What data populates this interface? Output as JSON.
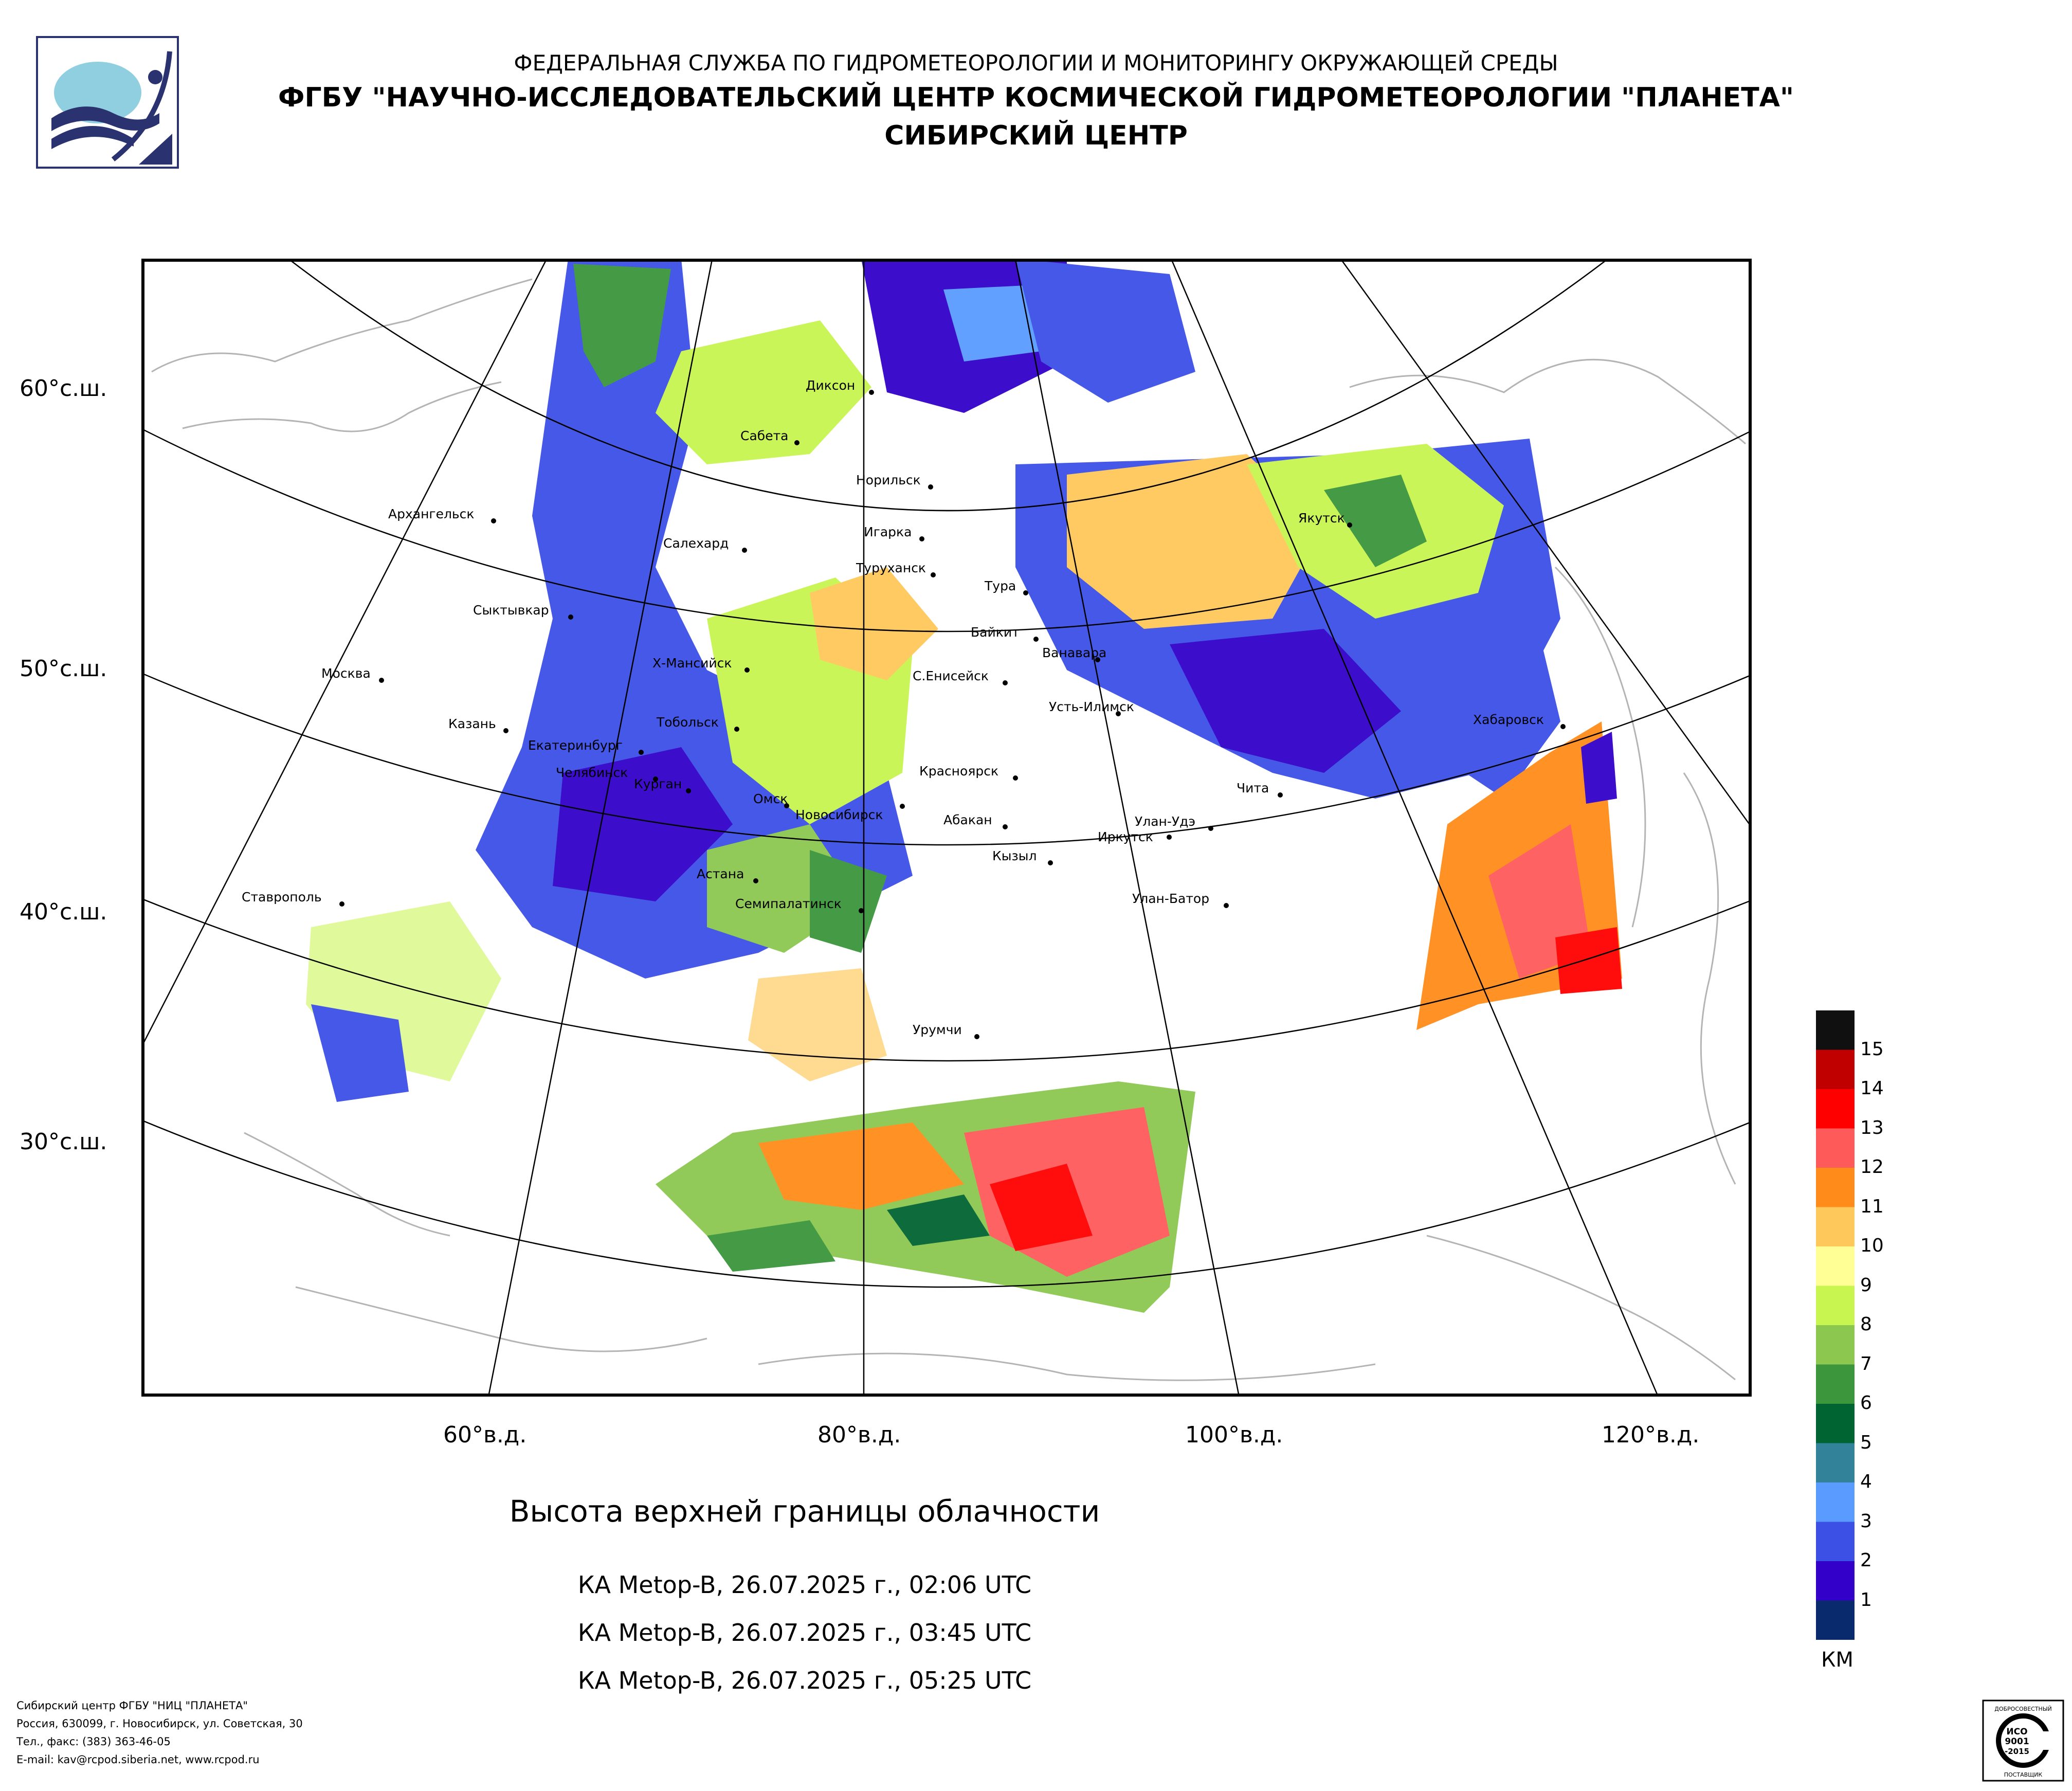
{
  "header": {
    "line1": "ФЕДЕРАЛЬНАЯ СЛУЖБА ПО ГИДРОМЕТЕОРОЛОГИИ И МОНИТОРИНГУ ОКРУЖАЮЩЕЙ СРЕДЫ",
    "line2": "ФГБУ \"НАУЧНО-ИССЛЕДОВАТЕЛЬСКИЙ ЦЕНТР КОСМИЧЕСКОЙ ГИДРОМЕТЕОРОЛОГИИ \"ПЛАНЕТА\"",
    "line3": "СИБИРСКИЙ ЦЕНТР"
  },
  "latitude_labels": [
    "60°с.ш.",
    "50°с.ш.",
    "40°с.ш.",
    "30°с.ш."
  ],
  "longitude_labels": [
    "60°в.д.",
    "80°в.д.",
    "100°в.д.",
    "120°в.д."
  ],
  "cities": [
    "Архангельск",
    "Сыктывкар",
    "Москва",
    "Казань",
    "Екатеринбург",
    "Челябинск",
    "Курган",
    "Тобольск",
    "Х-Мансийск",
    "Салехард",
    "Сабета",
    "Диксон",
    "Норильск",
    "Игарка",
    "Туруханск",
    "Тура",
    "Якутск",
    "Байкит",
    "Ванавара",
    "С.Енисейск",
    "Усть-Илимск",
    "Хабаровск",
    "Красноярск",
    "Омск",
    "Новосибирск",
    "Абакан",
    "Кызыл",
    "Иркутск",
    "Улан-Удэ",
    "Чита",
    "Астана",
    "Семипалатинск",
    "Улан-Батор",
    "Ставрополь",
    "Урумчи"
  ],
  "title": "Высота верхней границы облачности",
  "passes": [
    "КА Metop-B, 26.07.2025 г., 02:06 UTC",
    "КА Metop-B, 26.07.2025 г., 03:45 UTC",
    "КА Metop-B, 26.07.2025 г., 05:25 UTC"
  ],
  "legend": {
    "unit": "КМ",
    "levels": [
      "15",
      "14",
      "13",
      "12",
      "11",
      "10",
      "9",
      "8",
      "7",
      "6",
      "5",
      "4",
      "3",
      "2",
      "1"
    ],
    "colors": [
      "#101010",
      "#c00000",
      "#ff0000",
      "#ff5a5a",
      "#ff8c1a",
      "#ffc85a",
      "#ffff96",
      "#c8f550",
      "#8cc850",
      "#3c963c",
      "#006432",
      "#32829a",
      "#5a9bff",
      "#3c50e6",
      "#3200c8",
      "#0a2a6e"
    ]
  },
  "footer": [
    "Сибирский центр ФГБУ \"НИЦ \"ПЛАНЕТА\"",
    "Россия, 630099, г. Новосибирск, ул. Советская, 30",
    "Тел., факс: (383) 363-46-05",
    "E-mail: kav@rcpod.siberia.net, www.rcpod.ru"
  ],
  "cert": {
    "top_text": "ДОБРОСОВЕСТНЫЙ",
    "line1": "ИСО",
    "line2": "9001",
    "line3": "-2015",
    "bottom_text": "ПОСТАВЩИК"
  }
}
